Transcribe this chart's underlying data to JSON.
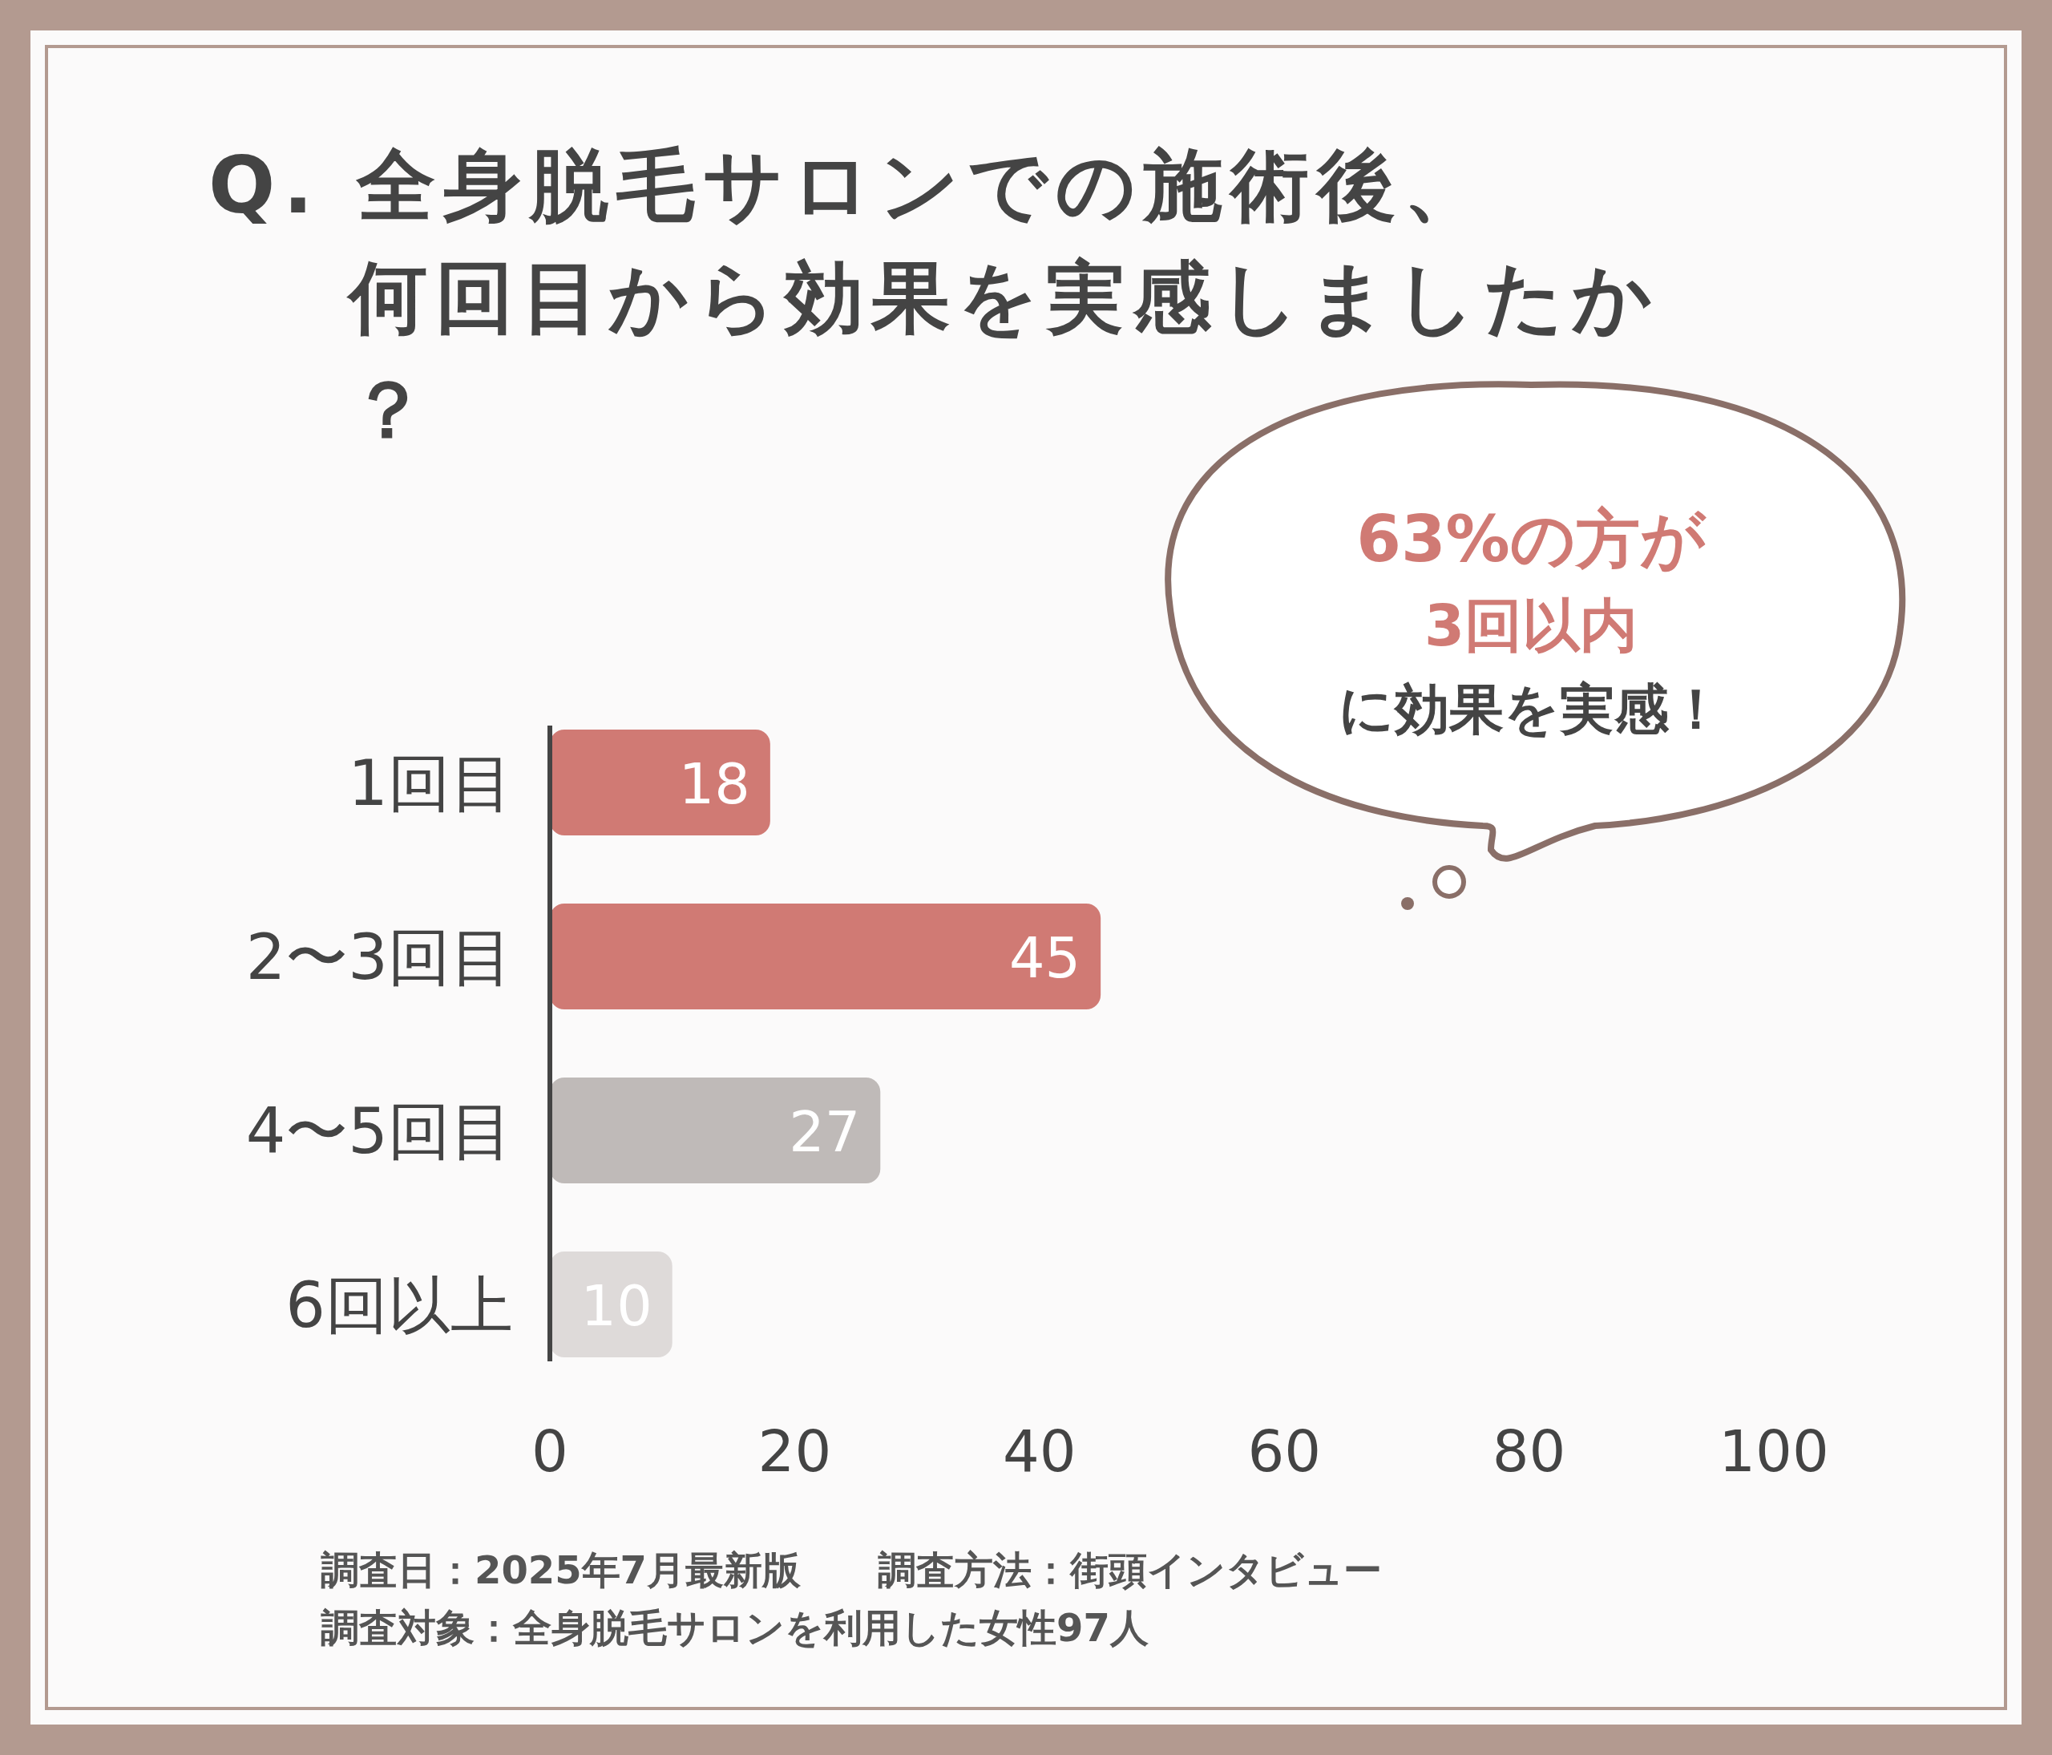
{
  "chart_data": {
    "type": "bar",
    "orientation": "horizontal",
    "title": "Q. 全身脱毛サロンでの施術後、何回目から効果を実感しましたか？",
    "categories": [
      "1回目",
      "2〜3回目",
      "4〜5回目",
      "6回以上"
    ],
    "values": [
      18,
      45,
      27,
      10
    ],
    "colors": [
      "#d07a74",
      "#d07a74",
      "#bfbab8",
      "#dedad9"
    ],
    "xlim": [
      0,
      100
    ],
    "xticks": [
      0,
      20,
      40,
      60,
      80,
      100
    ],
    "data_labels": true,
    "grid": false,
    "annotations": [
      "63%の方が",
      "3回以内",
      "に効果を実感！",
      "調査日：2025年7月最新版　　調査方法：街頭インタビュー",
      "調査対象：全身脱毛サロンを利用した女性97人"
    ]
  }
}
